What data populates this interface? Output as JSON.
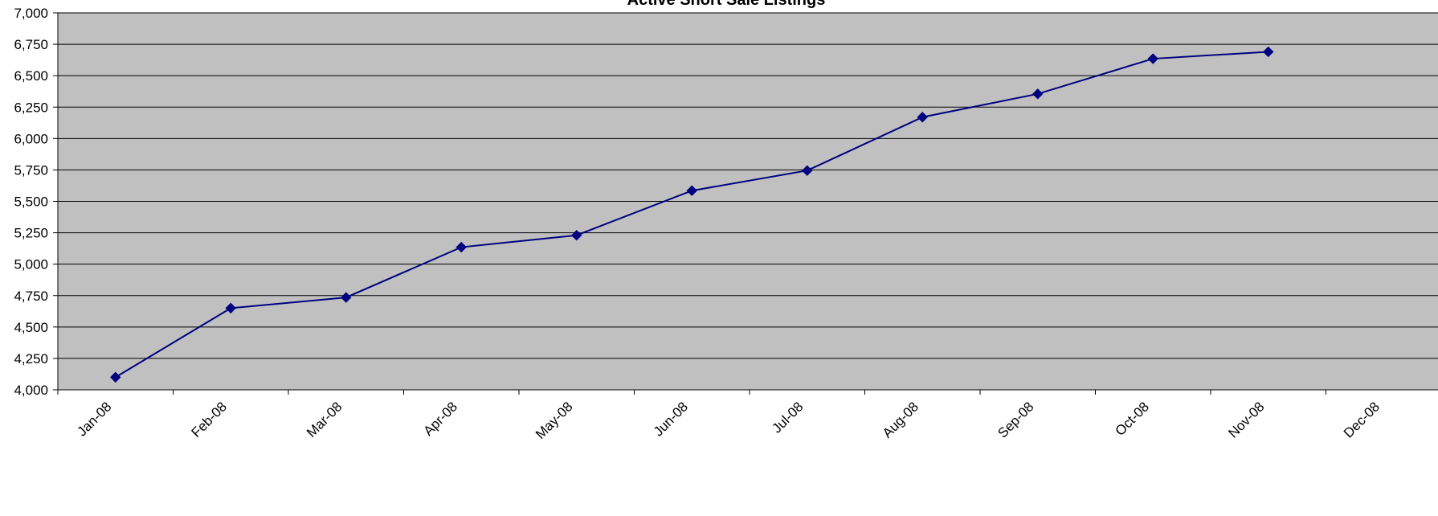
{
  "chart_data": {
    "type": "line",
    "title": "Active Short Sale Listings",
    "categories": [
      "Jan-08",
      "Feb-08",
      "Mar-08",
      "Apr-08",
      "May-08",
      "Jun-08",
      "Jul-08",
      "Aug-08",
      "Sep-08",
      "Oct-08",
      "Nov-08",
      "Dec-08"
    ],
    "series": [
      {
        "values": [
          4100,
          4650,
          4735,
          5135,
          5230,
          5585,
          5745,
          6170,
          6355,
          6635,
          6690,
          null
        ],
        "color": "#000080",
        "marker": "diamond"
      }
    ],
    "ylim": [
      4000,
      7000
    ],
    "yticks": [
      4000,
      4250,
      4500,
      4750,
      5000,
      5250,
      5500,
      5750,
      6000,
      6250,
      6500,
      6750,
      7000
    ],
    "ytick_labels": [
      "4,000",
      "4,250",
      "4,500",
      "4,750",
      "5,000",
      "5,250",
      "5,500",
      "5,750",
      "6,000",
      "6,250",
      "6,500",
      "6,750",
      "7,000"
    ],
    "grid": true,
    "plot_background": "#c0c0c0",
    "gridline_color": "#000000"
  }
}
